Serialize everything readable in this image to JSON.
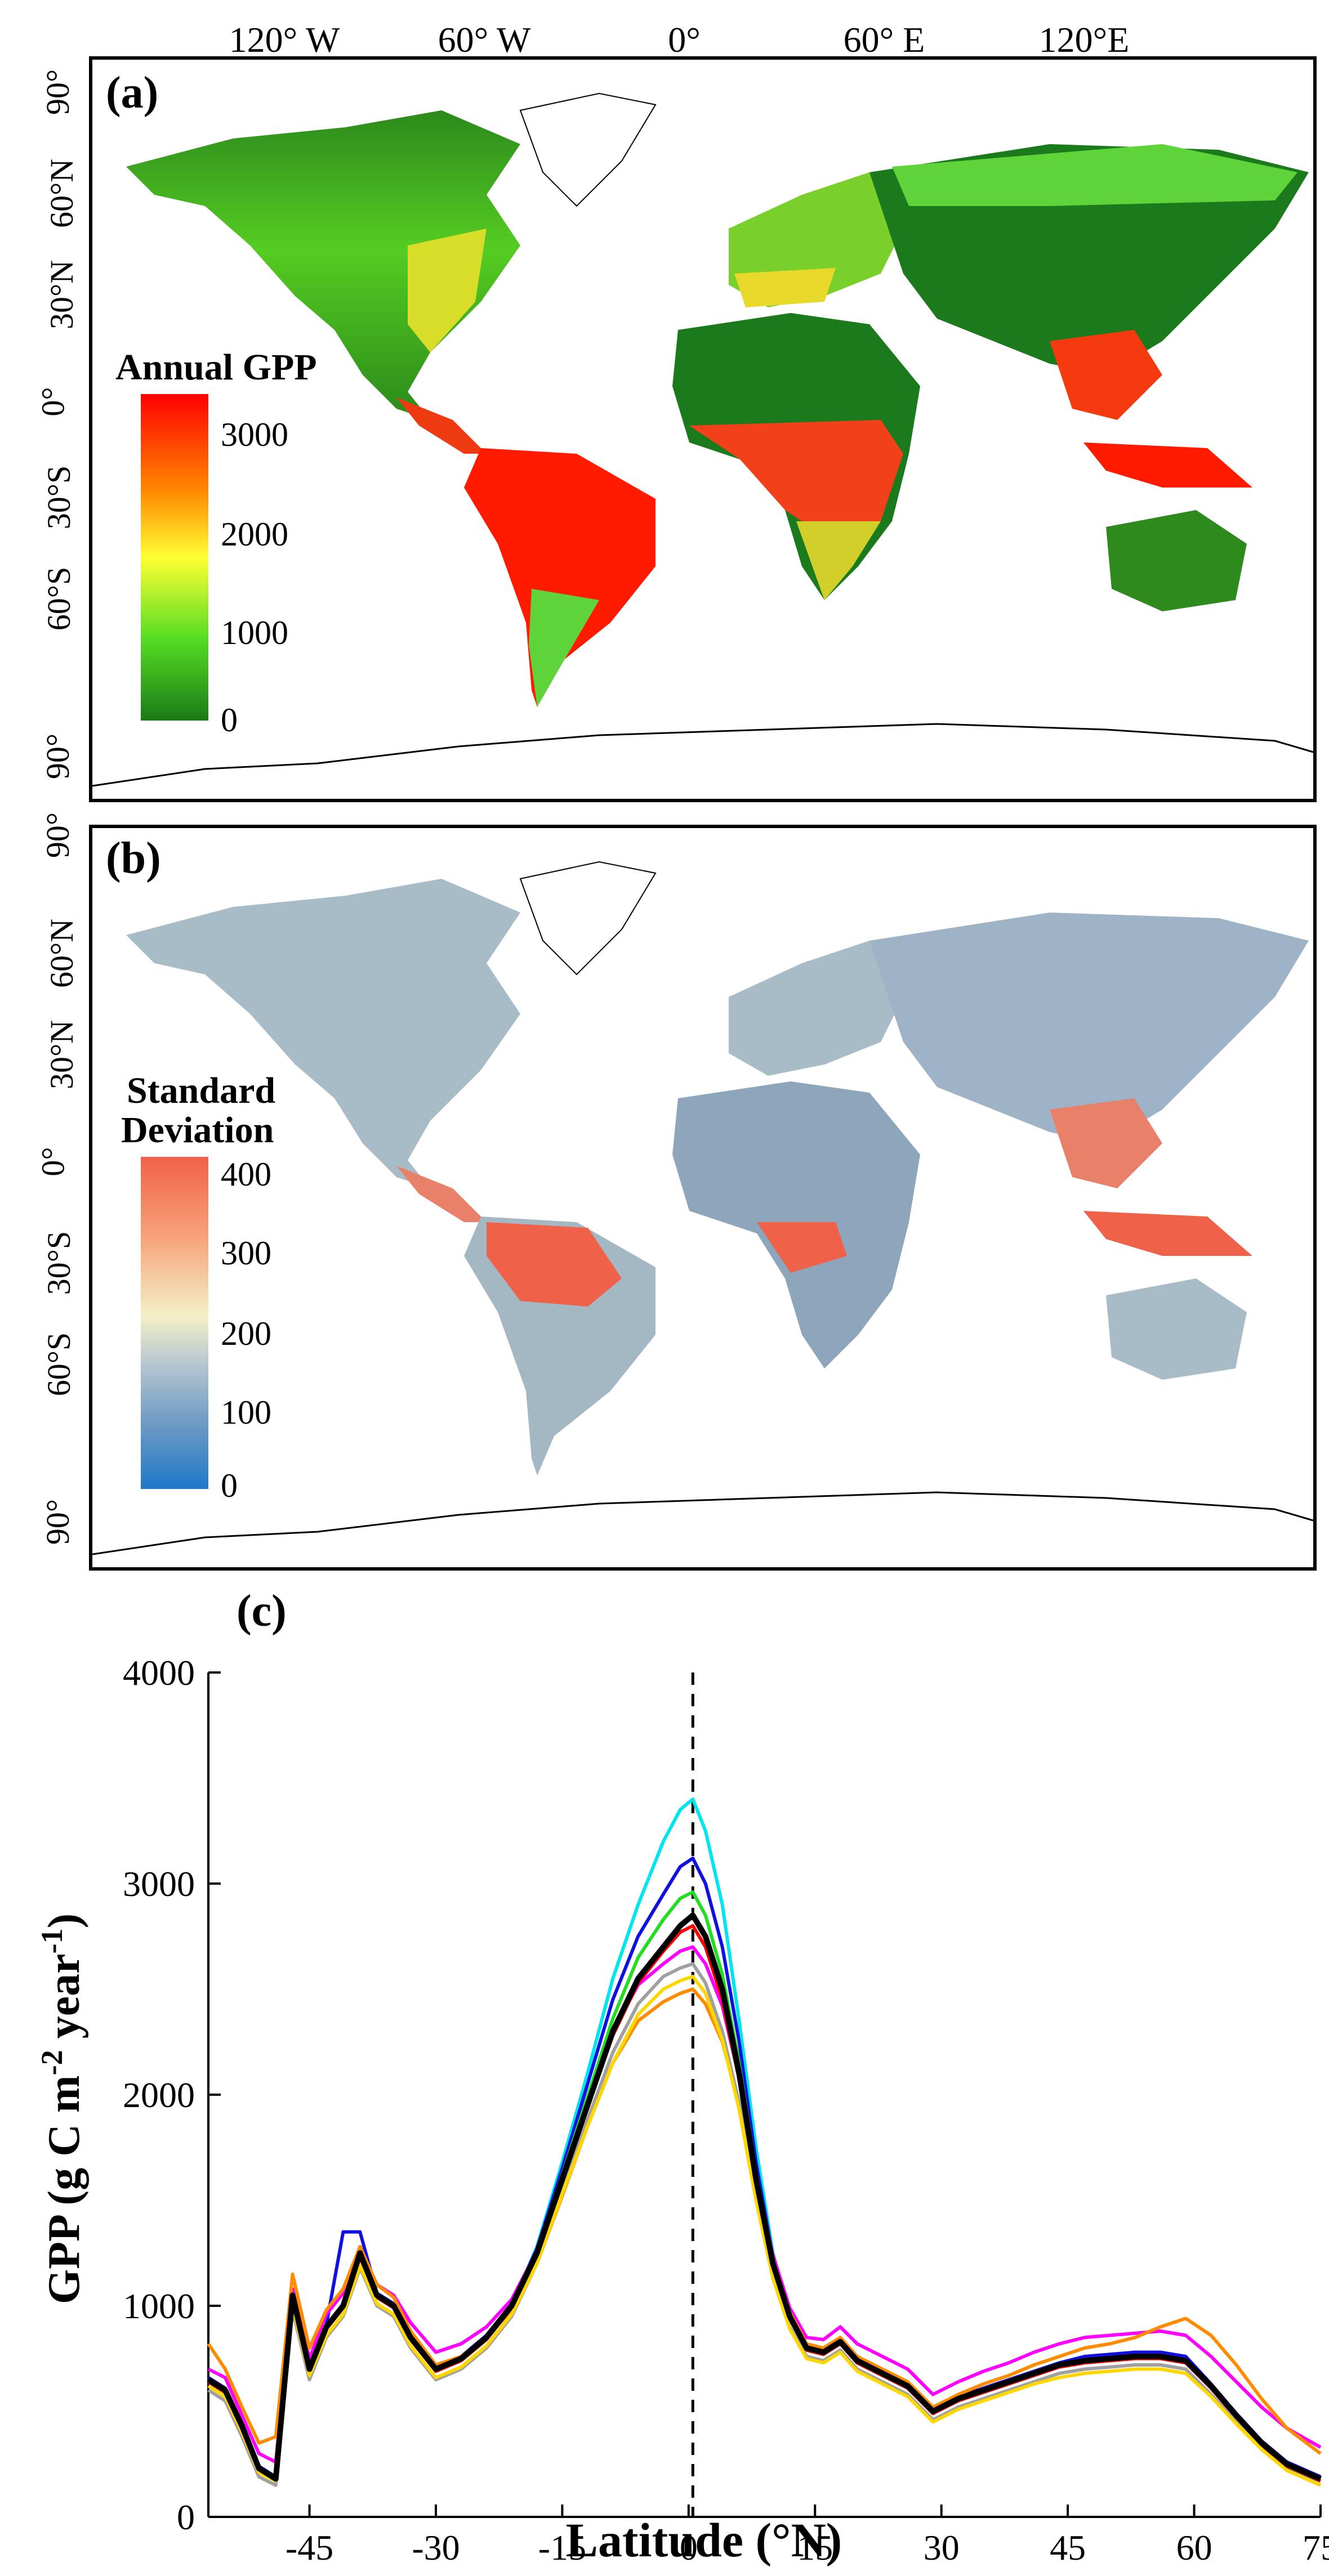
{
  "panels": {
    "a": {
      "letter": "(a)",
      "legend_title": "Annual GPP",
      "legend_ticks": [
        "3000",
        "2000",
        "1000",
        "0"
      ],
      "legend_colors": [
        "#ff0000",
        "#ff8a00",
        "#ffff33",
        "#55dd22",
        "#1a7a18"
      ]
    },
    "b": {
      "letter": "(b)",
      "legend_title_line1": "Standard",
      "legend_title_line2": "Deviation",
      "legend_ticks": [
        "400",
        "300",
        "200",
        "100",
        "0"
      ],
      "legend_colors": [
        "#f2604a",
        "#f7a57d",
        "#f3f0c6",
        "#b8c7d0",
        "#6f9bc4",
        "#1f78c8"
      ]
    },
    "c": {
      "letter": "(c)"
    }
  },
  "map_axes": {
    "lon_ticks": [
      "120° W",
      "60° W",
      "0°",
      "60° E",
      "120°E"
    ],
    "lat_ticks": [
      "90°",
      "60°N",
      "30°N",
      "0°",
      "30°S",
      "60°S",
      "90°"
    ]
  },
  "colors": {
    "land_gpp_low": "#1b7a1b",
    "land_gpp_mid": "#55cc22",
    "land_gpp_high": "#ff1a00",
    "land_sd_base": "#9fb4c4",
    "land_sd_high": "#f0614a"
  },
  "chart_data": {
    "type": "line",
    "title": "",
    "xlabel": "Latitude (°N)",
    "ylabel": "GPP (g C m-2 year-1)",
    "ylabel_parts": [
      "GPP (g C m",
      "-2",
      " year",
      "-1",
      ")"
    ],
    "xlim": [
      -57,
      75
    ],
    "ylim": [
      0,
      4000
    ],
    "xticks": [
      -45,
      -30,
      -15,
      0,
      15,
      30,
      45,
      60,
      75
    ],
    "yticks": [
      0,
      1000,
      2000,
      3000,
      4000
    ],
    "reference_line": {
      "x": 0.5,
      "style": "dashed"
    },
    "x": [
      -57,
      -55,
      -53,
      -51,
      -49,
      -47,
      -45,
      -43,
      -41,
      -39,
      -37,
      -35,
      -33,
      -30,
      -27,
      -24,
      -21,
      -18,
      -15,
      -12,
      -9,
      -6,
      -3,
      -1,
      0.5,
      2,
      4,
      6,
      8,
      10,
      12,
      14,
      16,
      18,
      20,
      23,
      26,
      29,
      32,
      35,
      38,
      41,
      44,
      47,
      50,
      53,
      56,
      59,
      62,
      65,
      68,
      71,
      75
    ],
    "series": [
      {
        "color": "#000000",
        "values": [
          650,
          600,
          430,
          230,
          180,
          1050,
          700,
          900,
          1000,
          1250,
          1050,
          1000,
          850,
          700,
          750,
          850,
          1000,
          1250,
          1600,
          1950,
          2300,
          2550,
          2700,
          2800,
          2850,
          2750,
          2500,
          2100,
          1600,
          1200,
          950,
          800,
          780,
          830,
          740,
          680,
          620,
          500,
          560,
          600,
          640,
          680,
          720,
          740,
          750,
          760,
          760,
          740,
          620,
          480,
          350,
          250,
          180
        ]
      },
      {
        "color": "#00e5ee",
        "values": [
          640,
          590,
          420,
          220,
          170,
          1030,
          690,
          890,
          990,
          1230,
          1040,
          990,
          840,
          690,
          740,
          850,
          1000,
          1280,
          1680,
          2100,
          2550,
          2900,
          3200,
          3350,
          3400,
          3250,
          2900,
          2350,
          1750,
          1250,
          970,
          810,
          780,
          820,
          730,
          670,
          610,
          490,
          550,
          600,
          640,
          680,
          720,
          750,
          760,
          770,
          770,
          750,
          620,
          470,
          330,
          230,
          150
        ]
      },
      {
        "color": "#1010e0",
        "values": [
          660,
          610,
          440,
          240,
          190,
          1060,
          710,
          910,
          1350,
          1350,
          1060,
          1010,
          860,
          710,
          760,
          860,
          1010,
          1270,
          1650,
          2050,
          2450,
          2750,
          2950,
          3080,
          3120,
          3000,
          2700,
          2250,
          1680,
          1230,
          960,
          810,
          790,
          840,
          750,
          690,
          630,
          510,
          570,
          610,
          650,
          690,
          730,
          760,
          770,
          780,
          780,
          760,
          630,
          490,
          360,
          260,
          190
        ]
      },
      {
        "color": "#ff00ff",
        "values": [
          700,
          660,
          480,
          300,
          260,
          1080,
          750,
          960,
          1060,
          1280,
          1100,
          1050,
          920,
          780,
          820,
          900,
          1030,
          1260,
          1600,
          1960,
          2300,
          2520,
          2620,
          2680,
          2700,
          2620,
          2420,
          2080,
          1620,
          1240,
          990,
          850,
          840,
          900,
          820,
          760,
          700,
          580,
          640,
          690,
          730,
          780,
          820,
          850,
          860,
          870,
          880,
          860,
          760,
          640,
          520,
          420,
          330
        ]
      },
      {
        "color": "#ff8c00",
        "values": [
          820,
          700,
          520,
          350,
          380,
          1150,
          800,
          980,
          1080,
          1280,
          1100,
          1040,
          880,
          720,
          760,
          850,
          980,
          1200,
          1520,
          1850,
          2150,
          2350,
          2440,
          2480,
          2500,
          2430,
          2250,
          1950,
          1550,
          1200,
          970,
          820,
          800,
          850,
          760,
          700,
          640,
          520,
          580,
          630,
          670,
          720,
          760,
          800,
          820,
          850,
          900,
          940,
          860,
          720,
          560,
          420,
          300
        ]
      },
      {
        "color": "#22dd22",
        "values": [
          650,
          600,
          430,
          230,
          180,
          1040,
          700,
          900,
          1000,
          1240,
          1050,
          1000,
          850,
          700,
          750,
          850,
          1000,
          1260,
          1620,
          1990,
          2360,
          2650,
          2830,
          2930,
          2960,
          2850,
          2570,
          2150,
          1630,
          1210,
          950,
          800,
          780,
          830,
          740,
          680,
          620,
          500,
          560,
          600,
          640,
          680,
          720,
          740,
          750,
          760,
          760,
          740,
          620,
          480,
          350,
          250,
          180
        ]
      },
      {
        "color": "#ff0000",
        "values": [
          640,
          590,
          420,
          220,
          170,
          1030,
          690,
          890,
          990,
          1230,
          1040,
          990,
          840,
          690,
          740,
          840,
          990,
          1240,
          1590,
          1940,
          2280,
          2530,
          2680,
          2770,
          2800,
          2700,
          2450,
          2070,
          1590,
          1190,
          940,
          790,
          770,
          820,
          730,
          670,
          610,
          490,
          550,
          590,
          630,
          670,
          710,
          730,
          740,
          750,
          750,
          730,
          610,
          470,
          340,
          240,
          170
        ]
      },
      {
        "color": "#a0a0a0",
        "values": [
          600,
          550,
          380,
          190,
          150,
          980,
          650,
          850,
          950,
          1180,
          1000,
          950,
          800,
          650,
          700,
          800,
          950,
          1200,
          1550,
          1880,
          2200,
          2430,
          2560,
          2600,
          2620,
          2530,
          2300,
          1960,
          1520,
          1140,
          900,
          760,
          740,
          790,
          700,
          640,
          580,
          460,
          520,
          560,
          600,
          640,
          680,
          700,
          710,
          720,
          720,
          700,
          580,
          450,
          320,
          220,
          150
        ]
      },
      {
        "color": "#ffd700",
        "values": [
          620,
          570,
          400,
          210,
          170,
          1000,
          670,
          860,
          960,
          1190,
          1010,
          960,
          810,
          660,
          710,
          810,
          960,
          1200,
          1530,
          1850,
          2150,
          2380,
          2500,
          2540,
          2560,
          2480,
          2260,
          1930,
          1500,
          1130,
          890,
          750,
          730,
          780,
          690,
          630,
          570,
          450,
          510,
          550,
          590,
          630,
          660,
          680,
          690,
          700,
          700,
          680,
          570,
          440,
          320,
          220,
          150
        ]
      }
    ]
  }
}
